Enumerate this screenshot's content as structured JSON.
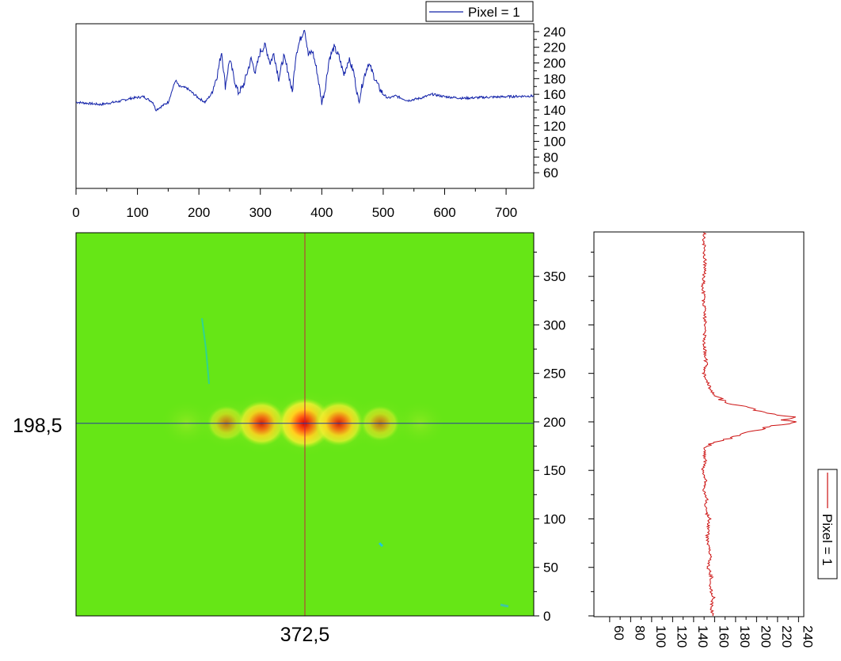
{
  "colors": {
    "top_profile": "#1020a8",
    "right_profile": "#cc1010",
    "image_background": "#66e616",
    "crosshair_vertical": "#c0283c",
    "crosshair_horizontal": "#283c9c"
  },
  "crosshair": {
    "x_label": "372,5",
    "y_label": "198,5",
    "x": 372.5,
    "y": 198.5
  },
  "chart_data": [
    {
      "type": "line",
      "panel": "horizontal profile",
      "legend_position": "top-right",
      "xlim": [
        0,
        745
      ],
      "ylim": [
        40,
        250
      ],
      "x_ticks": [
        0,
        100,
        200,
        300,
        400,
        500,
        600,
        700
      ],
      "x_tick_labels": [
        "0",
        "100",
        "200",
        "300",
        "400",
        "500",
        "600",
        "700"
      ],
      "y_ticks": [
        60,
        80,
        100,
        120,
        140,
        160,
        180,
        200,
        220,
        240
      ],
      "y_tick_labels": [
        "60",
        "80",
        "100",
        "120",
        "140",
        "160",
        "180",
        "200",
        "220",
        "240"
      ],
      "series": [
        {
          "name": "Pixel = 1",
          "x": [
            0,
            40,
            55,
            70,
            90,
            110,
            125,
            130,
            150,
            162,
            168,
            180,
            200,
            210,
            220,
            230,
            237,
            243,
            250,
            258,
            264,
            272,
            285,
            292,
            300,
            308,
            316,
            322,
            330,
            338,
            345,
            352,
            358,
            365,
            372,
            378,
            385,
            392,
            400,
            405,
            412,
            420,
            428,
            436,
            444,
            452,
            460,
            468,
            476,
            484,
            492,
            500,
            508,
            520,
            540,
            560,
            580,
            600,
            630,
            660,
            700,
            745
          ],
          "y": [
            150,
            147,
            149,
            151,
            155,
            157,
            150,
            140,
            150,
            178,
            170,
            168,
            155,
            150,
            160,
            185,
            215,
            170,
            205,
            178,
            162,
            170,
            205,
            188,
            215,
            222,
            200,
            212,
            180,
            208,
            190,
            162,
            212,
            230,
            245,
            210,
            215,
            190,
            150,
            165,
            205,
            220,
            208,
            185,
            205,
            188,
            150,
            180,
            200,
            185,
            170,
            160,
            155,
            158,
            152,
            155,
            160,
            157,
            155,
            156,
            157,
            158
          ]
        }
      ]
    },
    {
      "type": "heatmap",
      "panel": "image",
      "xlim": [
        0,
        745
      ],
      "ylim": [
        0,
        395
      ],
      "y_ticks": [
        0,
        50,
        100,
        150,
        200,
        250,
        300,
        350
      ],
      "y_tick_labels": [
        "0",
        "50",
        "100",
        "150",
        "200",
        "250",
        "300",
        "350"
      ],
      "spots": [
        {
          "x": 180,
          "y": 198.5,
          "intensity": 0.25
        },
        {
          "x": 245,
          "y": 198.5,
          "intensity": 0.45
        },
        {
          "x": 302,
          "y": 198.5,
          "intensity": 0.8
        },
        {
          "x": 372.5,
          "y": 198.5,
          "intensity": 1.0
        },
        {
          "x": 428,
          "y": 198.5,
          "intensity": 0.8
        },
        {
          "x": 495,
          "y": 198.5,
          "intensity": 0.45
        },
        {
          "x": 560,
          "y": 198.5,
          "intensity": 0.2
        }
      ]
    },
    {
      "type": "line",
      "panel": "vertical profile",
      "legend_position": "right",
      "xlim": [
        45,
        245
      ],
      "ylim": [
        0,
        395
      ],
      "x_ticks": [
        60,
        80,
        100,
        120,
        140,
        160,
        180,
        200,
        220,
        240
      ],
      "x_tick_labels": [
        "60",
        "80",
        "100",
        "120",
        "140",
        "160",
        "180",
        "200",
        "220",
        "240"
      ],
      "y_ticks": [
        0,
        50,
        100,
        150,
        200,
        250,
        300,
        350
      ],
      "y_tick_labels": [
        "0",
        "50",
        "100",
        "150",
        "200",
        "250",
        "300",
        "350"
      ],
      "series": [
        {
          "name": "Pixel = 1",
          "y": [
            0,
            10,
            20,
            30,
            40,
            50,
            60,
            80,
            100,
            110,
            120,
            130,
            140,
            150,
            160,
            170,
            175,
            180,
            184,
            188,
            192,
            195,
            198,
            200,
            202,
            205,
            208,
            212,
            215,
            218,
            222,
            226,
            230,
            235,
            240,
            245,
            250,
            260,
            280,
            300,
            320,
            340,
            360,
            380,
            395
          ],
          "x": [
            158,
            157,
            159,
            155,
            157,
            154,
            156,
            153,
            155,
            151,
            153,
            150,
            152,
            149,
            151,
            150,
            152,
            163,
            178,
            185,
            205,
            210,
            230,
            238,
            225,
            235,
            215,
            200,
            195,
            175,
            168,
            162,
            158,
            155,
            154,
            152,
            150,
            152,
            150,
            151,
            150,
            149,
            151,
            150,
            150
          ]
        }
      ]
    }
  ]
}
